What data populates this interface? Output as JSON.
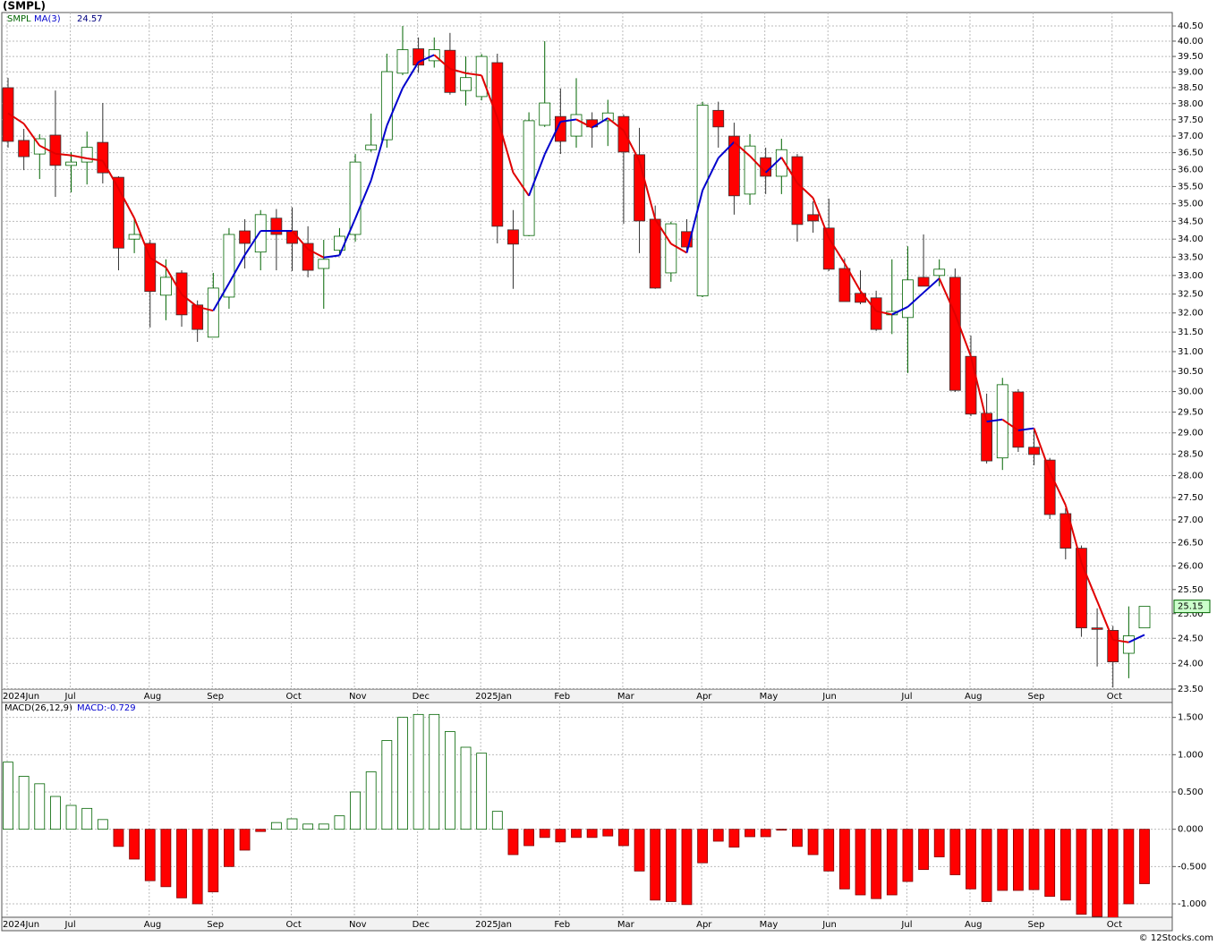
{
  "chart_data": [
    {
      "type": "candlestick",
      "title": "(SMPL)",
      "symbol": "SMPL",
      "indicator": "MA(3)",
      "indicator_value": 24.57,
      "log": true,
      "grid": true,
      "up_color": "#006400",
      "down_color": "#ff0000",
      "ma_up_color": "#0000cc",
      "ma_down_color": "#e00000",
      "categories": [
        "2024Jun",
        null,
        null,
        null,
        "Jul",
        null,
        null,
        null,
        null,
        "Aug",
        null,
        null,
        null,
        "Sep",
        null,
        null,
        null,
        null,
        "Oct",
        null,
        null,
        null,
        "Nov",
        null,
        null,
        null,
        "Dec",
        null,
        null,
        null,
        "2025Jan",
        null,
        null,
        null,
        null,
        "Feb",
        null,
        null,
        null,
        "Mar",
        null,
        null,
        null,
        null,
        "Apr",
        null,
        null,
        null,
        "May",
        null,
        null,
        null,
        "Jun",
        null,
        null,
        null,
        null,
        "Jul",
        null,
        null,
        null,
        "Aug",
        null,
        null,
        null,
        "Sep",
        null,
        null,
        null,
        null,
        "Oct",
        null,
        null
      ],
      "open": [
        38.5,
        36.87,
        36.46,
        37.03,
        36.12,
        36.22,
        36.81,
        35.77,
        34.0,
        33.88,
        32.47,
        33.07,
        32.21,
        31.37,
        32.42,
        34.23,
        33.64,
        34.59,
        34.23,
        33.88,
        33.19,
        33.69,
        34.13,
        36.59,
        36.89,
        38.96,
        39.75,
        39.36,
        39.7,
        38.41,
        38.22,
        39.3,
        34.26,
        34.1,
        37.33,
        37.6,
        37.0,
        37.5,
        37.47,
        37.6,
        36.44,
        34.56,
        33.07,
        34.21,
        32.45,
        37.79,
        37.0,
        35.28,
        36.35,
        35.8,
        36.38,
        34.69,
        34.31,
        33.19,
        32.52,
        32.4,
        31.95,
        31.88,
        32.95,
        33.0,
        32.95,
        30.88,
        29.47,
        28.41,
        29.99,
        28.66,
        28.36,
        27.14,
        26.38,
        24.71,
        24.66,
        24.2,
        24.71
      ],
      "high": [
        38.81,
        37.22,
        37.06,
        38.41,
        36.52,
        37.14,
        38.02,
        35.8,
        34.56,
        33.98,
        33.44,
        33.14,
        32.33,
        33.07,
        34.31,
        34.56,
        34.82,
        34.85,
        34.9,
        34.36,
        33.98,
        34.31,
        36.46,
        37.69,
        39.59,
        40.5,
        40.12,
        40.12,
        40.27,
        39.5,
        39.58,
        39.59,
        34.82,
        37.73,
        40.0,
        38.47,
        38.8,
        37.73,
        38.12,
        37.66,
        37.25,
        34.95,
        34.49,
        34.56,
        38.06,
        38.06,
        37.41,
        37.06,
        36.65,
        36.92,
        36.46,
        35.07,
        35.15,
        33.47,
        33.14,
        32.59,
        33.44,
        33.8,
        34.13,
        33.44,
        33.19,
        31.41,
        29.95,
        30.34,
        30.06,
        29.08,
        28.41,
        27.26,
        26.44,
        25.11,
        24.75,
        25.15,
        25.15
      ],
      "low": [
        36.65,
        35.98,
        35.72,
        35.2,
        35.33,
        35.56,
        35.59,
        33.14,
        33.61,
        31.62,
        31.81,
        31.64,
        31.25,
        31.37,
        32.11,
        33.19,
        33.14,
        33.14,
        33.12,
        32.95,
        32.11,
        33.56,
        33.93,
        36.52,
        36.65,
        38.9,
        38.97,
        39.14,
        38.28,
        37.94,
        38.1,
        33.88,
        32.64,
        34.08,
        37.28,
        36.46,
        36.65,
        36.65,
        36.7,
        34.43,
        33.61,
        32.64,
        32.83,
        33.66,
        32.42,
        36.65,
        34.69,
        34.97,
        35.28,
        35.28,
        33.93,
        34.18,
        33.12,
        32.3,
        32.23,
        31.53,
        31.45,
        30.46,
        32.71,
        32.71,
        29.99,
        29.4,
        28.28,
        28.13,
        28.55,
        28.24,
        27.02,
        26.14,
        24.53,
        23.94,
        23.53,
        23.71,
        24.71
      ],
      "close": [
        36.84,
        36.38,
        36.92,
        36.12,
        36.22,
        36.66,
        35.9,
        33.75,
        34.13,
        32.57,
        32.95,
        31.95,
        31.57,
        32.66,
        34.13,
        33.88,
        34.69,
        34.13,
        33.88,
        33.14,
        33.44,
        34.08,
        36.22,
        36.73,
        39.01,
        39.72,
        39.22,
        39.72,
        38.35,
        38.82,
        39.5,
        34.36,
        33.86,
        37.47,
        38.02,
        36.84,
        37.66,
        37.28,
        37.71,
        36.52,
        34.51,
        32.66,
        34.43,
        33.78,
        37.95,
        37.28,
        35.23,
        36.7,
        35.8,
        36.59,
        34.41,
        34.51,
        33.17,
        32.3,
        32.28,
        31.57,
        32.04,
        32.88,
        32.71,
        33.17,
        30.03,
        29.45,
        28.34,
        30.17,
        28.66,
        28.49,
        27.12,
        26.38,
        24.71,
        24.68,
        24.03,
        24.55,
        25.15
      ],
      "ma": [
        37.7,
        37.38,
        36.71,
        36.47,
        36.42,
        36.33,
        36.26,
        35.44,
        34.59,
        33.48,
        33.22,
        32.49,
        32.16,
        32.06,
        32.79,
        33.56,
        34.23,
        34.23,
        34.23,
        33.72,
        33.49,
        33.55,
        34.58,
        35.68,
        37.32,
        38.49,
        39.32,
        39.55,
        39.1,
        38.96,
        38.89,
        37.56,
        35.91,
        35.23,
        36.45,
        37.44,
        37.51,
        37.26,
        37.55,
        37.17,
        36.25,
        34.56,
        33.87,
        33.62,
        35.39,
        36.34,
        36.82,
        36.4,
        35.91,
        36.36,
        35.6,
        35.17,
        34.03,
        33.33,
        32.58,
        32.05,
        31.96,
        32.16,
        32.54,
        32.92,
        31.97,
        30.88,
        29.27,
        29.32,
        29.06,
        29.11,
        28.09,
        27.33,
        26.07,
        25.26,
        24.47,
        24.42,
        24.57
      ],
      "ylim": [
        23.5,
        40.95
      ],
      "yticks": [
        {
          "value": 23.5,
          "label": "23.50"
        },
        {
          "value": 24,
          "label": "24.00"
        },
        {
          "value": 24.5,
          "label": "24.50"
        },
        {
          "value": 25,
          "label": "25.00"
        },
        {
          "value": 25.5,
          "label": "25.50"
        },
        {
          "value": 26,
          "label": "26.00"
        },
        {
          "value": 26.5,
          "label": "26.50"
        },
        {
          "value": 27,
          "label": "27.00"
        },
        {
          "value": 27.5,
          "label": "27.50"
        },
        {
          "value": 28,
          "label": "28.00"
        },
        {
          "value": 28.5,
          "label": "28.50"
        },
        {
          "value": 29,
          "label": "29.00"
        },
        {
          "value": 29.5,
          "label": "29.50"
        },
        {
          "value": 30,
          "label": "30.00"
        },
        {
          "value": 30.5,
          "label": "30.50"
        },
        {
          "value": 31,
          "label": "31.00"
        },
        {
          "value": 31.5,
          "label": "31.50"
        },
        {
          "value": 32,
          "label": "32.00"
        },
        {
          "value": 32.5,
          "label": "32.50"
        },
        {
          "value": 33,
          "label": "33.00"
        },
        {
          "value": 33.5,
          "label": "33.50"
        },
        {
          "value": 34,
          "label": "34.00"
        },
        {
          "value": 34.5,
          "label": "34.50"
        },
        {
          "value": 35,
          "label": "35.00"
        },
        {
          "value": 35.5,
          "label": "35.50"
        },
        {
          "value": 36,
          "label": "36.00"
        },
        {
          "value": 36.5,
          "label": "36.50"
        },
        {
          "value": 37,
          "label": "37.00"
        },
        {
          "value": 37.5,
          "label": "37.50"
        },
        {
          "value": 38,
          "label": "38.00"
        },
        {
          "value": 38.5,
          "label": "38.50"
        },
        {
          "value": 39,
          "label": "39.00"
        },
        {
          "value": 39.5,
          "label": "39.50"
        },
        {
          "value": 40,
          "label": "40.00"
        },
        {
          "value": 40.5,
          "label": "40.50"
        }
      ]
    },
    {
      "type": "bar",
      "title": "MACD(26,12,9)",
      "value_text": "MACD:-0.729",
      "grid": true,
      "up_color": "#006400",
      "down_color": "#ff0000",
      "categories": [
        "2024Jun",
        null,
        null,
        null,
        "Jul",
        null,
        null,
        null,
        null,
        "Aug",
        null,
        null,
        null,
        "Sep",
        null,
        null,
        null,
        null,
        "Oct",
        null,
        null,
        null,
        "Nov",
        null,
        null,
        null,
        "Dec",
        null,
        null,
        null,
        "2025Jan",
        null,
        null,
        null,
        null,
        "Feb",
        null,
        null,
        null,
        "Mar",
        null,
        null,
        null,
        null,
        "Apr",
        null,
        null,
        null,
        "May",
        null,
        null,
        null,
        "Jun",
        null,
        null,
        null,
        null,
        "Jul",
        null,
        null,
        null,
        "Aug",
        null,
        null,
        null,
        "Sep",
        null,
        null,
        null,
        null,
        "Oct",
        null,
        null
      ],
      "values": [
        0.9,
        0.71,
        0.61,
        0.44,
        0.32,
        0.28,
        0.13,
        -0.23,
        -0.4,
        -0.69,
        -0.77,
        -0.92,
        -1.0,
        -0.84,
        -0.5,
        -0.28,
        -0.03,
        0.09,
        0.14,
        0.07,
        0.07,
        0.18,
        0.5,
        0.77,
        1.19,
        1.5,
        1.54,
        1.54,
        1.31,
        1.1,
        1.02,
        0.24,
        -0.34,
        -0.22,
        -0.11,
        -0.17,
        -0.11,
        -0.11,
        -0.09,
        -0.22,
        -0.56,
        -0.95,
        -0.97,
        -1.01,
        -0.45,
        -0.16,
        -0.24,
        -0.1,
        -0.1,
        -0.01,
        -0.23,
        -0.34,
        -0.56,
        -0.8,
        -0.88,
        -0.93,
        -0.88,
        -0.7,
        -0.54,
        -0.37,
        -0.61,
        -0.8,
        -0.97,
        -0.82,
        -0.82,
        -0.81,
        -0.9,
        -0.95,
        -1.14,
        -1.17,
        -1.24,
        -1.0,
        -0.73
      ],
      "ylim": [
        -1.18,
        1.7
      ],
      "yticks": [
        {
          "value": -1,
          "label": "-1.000"
        },
        {
          "value": -0.5,
          "label": "-0.500"
        },
        {
          "value": 0,
          "label": "0.000"
        },
        {
          "value": 0.5,
          "label": "0.500"
        },
        {
          "value": 1,
          "label": "1.000"
        },
        {
          "value": 1.5,
          "label": "1.500"
        }
      ]
    }
  ],
  "footer": "© 12Stocks.com"
}
